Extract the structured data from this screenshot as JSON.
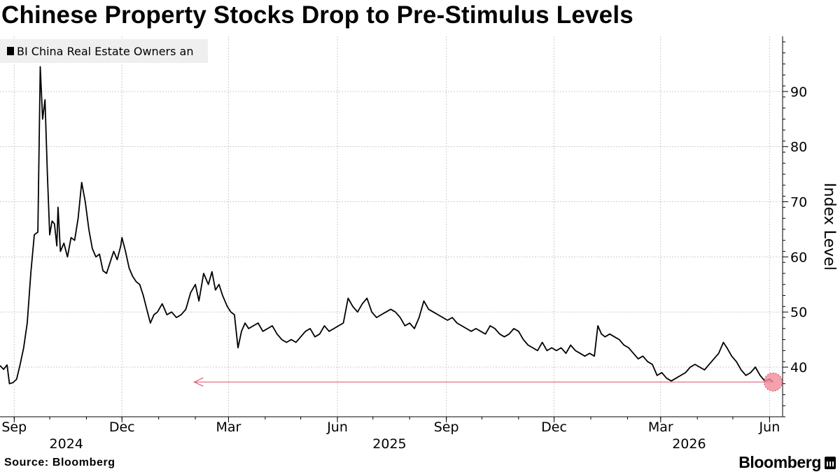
{
  "title": "Chinese Property Stocks Drop to Pre-Stimulus Levels",
  "legend": {
    "label": "BI China Real Estate Owners an"
  },
  "source": "Source: Bloomberg",
  "brand": {
    "name": "Bloomberg",
    "icon": "bloomberg-terminal-icon"
  },
  "colors": {
    "line": "#000000",
    "arrow": "#e0607a",
    "marker": "#f28a9a",
    "grid": "#cccccc",
    "legend_bg": "#efefef"
  },
  "chart_data": {
    "type": "line",
    "title": "Chinese Property Stocks Drop to Pre-Stimulus Levels",
    "ylabel": "Index Level",
    "ylim": [
      31,
      100
    ],
    "yticks": [
      40,
      50,
      60,
      70,
      80,
      90
    ],
    "y_axis_position": "right",
    "xlim": [
      "2024-08-20",
      "2026-06-12"
    ],
    "x_ticks": [
      {
        "date": "2024-09-01",
        "label": "Sep"
      },
      {
        "date": "2024-12-01",
        "label": "Dec"
      },
      {
        "date": "2025-03-01",
        "label": "Mar"
      },
      {
        "date": "2025-06-01",
        "label": "Jun"
      },
      {
        "date": "2025-09-01",
        "label": "Sep"
      },
      {
        "date": "2025-12-01",
        "label": "Dec"
      },
      {
        "date": "2026-03-01",
        "label": "Mar"
      },
      {
        "date": "2026-06-01",
        "label": "Jun"
      }
    ],
    "year_labels": [
      {
        "date": "2024-10-15",
        "label": "2024"
      },
      {
        "date": "2025-07-15",
        "label": "2025"
      },
      {
        "date": "2026-03-25",
        "label": "2026"
      }
    ],
    "grid": true,
    "legend_position": "top-left",
    "series": [
      {
        "name": "BI China Real Estate Owners an",
        "points": [
          [
            "2024-08-20",
            40.3
          ],
          [
            "2024-08-23",
            39.6
          ],
          [
            "2024-08-26",
            40.4
          ],
          [
            "2024-08-28",
            37.0
          ],
          [
            "2024-08-31",
            37.2
          ],
          [
            "2024-09-03",
            37.8
          ],
          [
            "2024-09-06",
            40.5
          ],
          [
            "2024-09-09",
            43.5
          ],
          [
            "2024-09-12",
            48.0
          ],
          [
            "2024-09-15",
            57.0
          ],
          [
            "2024-09-18",
            64.0
          ],
          [
            "2024-09-21",
            64.5
          ],
          [
            "2024-09-23",
            94.5
          ],
          [
            "2024-09-25",
            85.0
          ],
          [
            "2024-09-27",
            88.5
          ],
          [
            "2024-09-29",
            75.0
          ],
          [
            "2024-10-01",
            64.0
          ],
          [
            "2024-10-03",
            66.5
          ],
          [
            "2024-10-05",
            66.0
          ],
          [
            "2024-10-07",
            62.0
          ],
          [
            "2024-10-08",
            69.0
          ],
          [
            "2024-10-10",
            61.0
          ],
          [
            "2024-10-13",
            62.5
          ],
          [
            "2024-10-16",
            60.0
          ],
          [
            "2024-10-19",
            63.5
          ],
          [
            "2024-10-22",
            63.0
          ],
          [
            "2024-10-25",
            67.0
          ],
          [
            "2024-10-28",
            73.5
          ],
          [
            "2024-10-31",
            70.0
          ],
          [
            "2024-11-03",
            65.0
          ],
          [
            "2024-11-06",
            61.5
          ],
          [
            "2024-11-09",
            60.0
          ],
          [
            "2024-11-12",
            60.5
          ],
          [
            "2024-11-15",
            57.5
          ],
          [
            "2024-11-18",
            57.0
          ],
          [
            "2024-11-21",
            59.0
          ],
          [
            "2024-11-24",
            61.0
          ],
          [
            "2024-11-27",
            59.5
          ],
          [
            "2024-11-30",
            62.0
          ],
          [
            "2024-12-01",
            63.5
          ],
          [
            "2024-12-04",
            61.0
          ],
          [
            "2024-12-07",
            58.0
          ],
          [
            "2024-12-10",
            56.5
          ],
          [
            "2024-12-13",
            55.5
          ],
          [
            "2024-12-16",
            55.0
          ],
          [
            "2024-12-19",
            53.0
          ],
          [
            "2024-12-22",
            50.5
          ],
          [
            "2024-12-25",
            48.0
          ],
          [
            "2024-12-28",
            49.5
          ],
          [
            "2024-12-31",
            50.0
          ],
          [
            "2025-01-04",
            51.5
          ],
          [
            "2025-01-08",
            49.5
          ],
          [
            "2025-01-12",
            50.0
          ],
          [
            "2025-01-16",
            49.0
          ],
          [
            "2025-01-20",
            49.5
          ],
          [
            "2025-01-24",
            50.5
          ],
          [
            "2025-01-28",
            53.5
          ],
          [
            "2025-02-01",
            55.0
          ],
          [
            "2025-02-04",
            52.0
          ],
          [
            "2025-02-08",
            57.0
          ],
          [
            "2025-02-12",
            55.0
          ],
          [
            "2025-02-15",
            57.3
          ],
          [
            "2025-02-18",
            54.0
          ],
          [
            "2025-02-21",
            55.0
          ],
          [
            "2025-02-24",
            53.0
          ],
          [
            "2025-02-28",
            51.0
          ],
          [
            "2025-03-03",
            50.0
          ],
          [
            "2025-03-06",
            49.5
          ],
          [
            "2025-03-09",
            43.5
          ],
          [
            "2025-03-12",
            46.5
          ],
          [
            "2025-03-15",
            48.0
          ],
          [
            "2025-03-18",
            47.0
          ],
          [
            "2025-03-22",
            47.5
          ],
          [
            "2025-03-26",
            48.0
          ],
          [
            "2025-03-30",
            46.5
          ],
          [
            "2025-04-03",
            47.0
          ],
          [
            "2025-04-07",
            47.5
          ],
          [
            "2025-04-11",
            46.0
          ],
          [
            "2025-04-15",
            45.0
          ],
          [
            "2025-04-19",
            44.5
          ],
          [
            "2025-04-23",
            45.0
          ],
          [
            "2025-04-27",
            44.5
          ],
          [
            "2025-05-01",
            45.5
          ],
          [
            "2025-05-05",
            46.5
          ],
          [
            "2025-05-09",
            47.0
          ],
          [
            "2025-05-13",
            45.5
          ],
          [
            "2025-05-17",
            46.0
          ],
          [
            "2025-05-21",
            47.5
          ],
          [
            "2025-05-25",
            46.5
          ],
          [
            "2025-05-29",
            47.0
          ],
          [
            "2025-06-02",
            47.5
          ],
          [
            "2025-06-06",
            48.0
          ],
          [
            "2025-06-10",
            52.5
          ],
          [
            "2025-06-14",
            51.0
          ],
          [
            "2025-06-18",
            50.0
          ],
          [
            "2025-06-22",
            51.5
          ],
          [
            "2025-06-26",
            52.5
          ],
          [
            "2025-06-30",
            50.0
          ],
          [
            "2025-07-04",
            49.0
          ],
          [
            "2025-07-08",
            49.5
          ],
          [
            "2025-07-12",
            50.0
          ],
          [
            "2025-07-16",
            50.5
          ],
          [
            "2025-07-20",
            50.0
          ],
          [
            "2025-07-24",
            49.0
          ],
          [
            "2025-07-28",
            47.5
          ],
          [
            "2025-08-01",
            48.0
          ],
          [
            "2025-08-05",
            47.0
          ],
          [
            "2025-08-09",
            49.0
          ],
          [
            "2025-08-13",
            52.0
          ],
          [
            "2025-08-17",
            50.5
          ],
          [
            "2025-08-21",
            50.0
          ],
          [
            "2025-08-25",
            49.5
          ],
          [
            "2025-08-29",
            49.0
          ],
          [
            "2025-09-02",
            48.5
          ],
          [
            "2025-09-06",
            49.0
          ],
          [
            "2025-09-10",
            48.0
          ],
          [
            "2025-09-14",
            47.5
          ],
          [
            "2025-09-18",
            47.0
          ],
          [
            "2025-09-22",
            46.5
          ],
          [
            "2025-09-26",
            47.0
          ],
          [
            "2025-09-30",
            46.5
          ],
          [
            "2025-10-04",
            46.0
          ],
          [
            "2025-10-08",
            47.5
          ],
          [
            "2025-10-12",
            47.0
          ],
          [
            "2025-10-16",
            46.0
          ],
          [
            "2025-10-20",
            45.5
          ],
          [
            "2025-10-24",
            46.0
          ],
          [
            "2025-10-28",
            47.0
          ],
          [
            "2025-11-01",
            46.5
          ],
          [
            "2025-11-05",
            45.0
          ],
          [
            "2025-11-09",
            44.0
          ],
          [
            "2025-11-13",
            43.5
          ],
          [
            "2025-11-17",
            43.0
          ],
          [
            "2025-11-21",
            44.5
          ],
          [
            "2025-11-25",
            43.0
          ],
          [
            "2025-11-29",
            43.5
          ],
          [
            "2025-12-03",
            43.0
          ],
          [
            "2025-12-07",
            43.5
          ],
          [
            "2025-12-11",
            42.5
          ],
          [
            "2025-12-15",
            44.0
          ],
          [
            "2025-12-19",
            43.0
          ],
          [
            "2025-12-23",
            42.5
          ],
          [
            "2025-12-27",
            42.0
          ],
          [
            "2025-12-31",
            42.5
          ],
          [
            "2026-01-04",
            42.0
          ],
          [
            "2026-01-07",
            47.5
          ],
          [
            "2026-01-10",
            46.0
          ],
          [
            "2026-01-13",
            45.5
          ],
          [
            "2026-01-17",
            46.0
          ],
          [
            "2026-01-21",
            45.5
          ],
          [
            "2026-01-25",
            45.0
          ],
          [
            "2026-01-29",
            44.0
          ],
          [
            "2026-02-02",
            43.5
          ],
          [
            "2026-02-06",
            42.5
          ],
          [
            "2026-02-10",
            41.5
          ],
          [
            "2026-02-14",
            42.0
          ],
          [
            "2026-02-18",
            41.0
          ],
          [
            "2026-02-22",
            40.5
          ],
          [
            "2026-02-26",
            38.5
          ],
          [
            "2026-03-02",
            39.0
          ],
          [
            "2026-03-06",
            38.0
          ],
          [
            "2026-03-10",
            37.5
          ],
          [
            "2026-03-14",
            38.0
          ],
          [
            "2026-03-18",
            38.5
          ],
          [
            "2026-03-22",
            39.0
          ],
          [
            "2026-03-26",
            40.0
          ],
          [
            "2026-03-30",
            40.5
          ],
          [
            "2026-04-03",
            40.0
          ],
          [
            "2026-04-07",
            39.5
          ],
          [
            "2026-04-11",
            40.5
          ],
          [
            "2026-04-15",
            41.5
          ],
          [
            "2026-04-19",
            42.5
          ],
          [
            "2026-04-23",
            44.5
          ],
          [
            "2026-04-26",
            43.5
          ],
          [
            "2026-04-30",
            42.0
          ],
          [
            "2026-05-04",
            41.0
          ],
          [
            "2026-05-08",
            39.5
          ],
          [
            "2026-05-12",
            38.5
          ],
          [
            "2026-05-16",
            39.0
          ],
          [
            "2026-05-20",
            40.0
          ],
          [
            "2026-05-24",
            38.5
          ],
          [
            "2026-05-28",
            37.5
          ],
          [
            "2026-06-01",
            37.8
          ],
          [
            "2026-06-04",
            37.3
          ]
        ]
      }
    ],
    "annotations": [
      {
        "type": "arrow",
        "from_date": "2026-06-04",
        "to_date": "2025-01-31",
        "y": 37.3
      },
      {
        "type": "highlight-point",
        "date": "2026-06-04",
        "y": 37.3
      }
    ]
  }
}
